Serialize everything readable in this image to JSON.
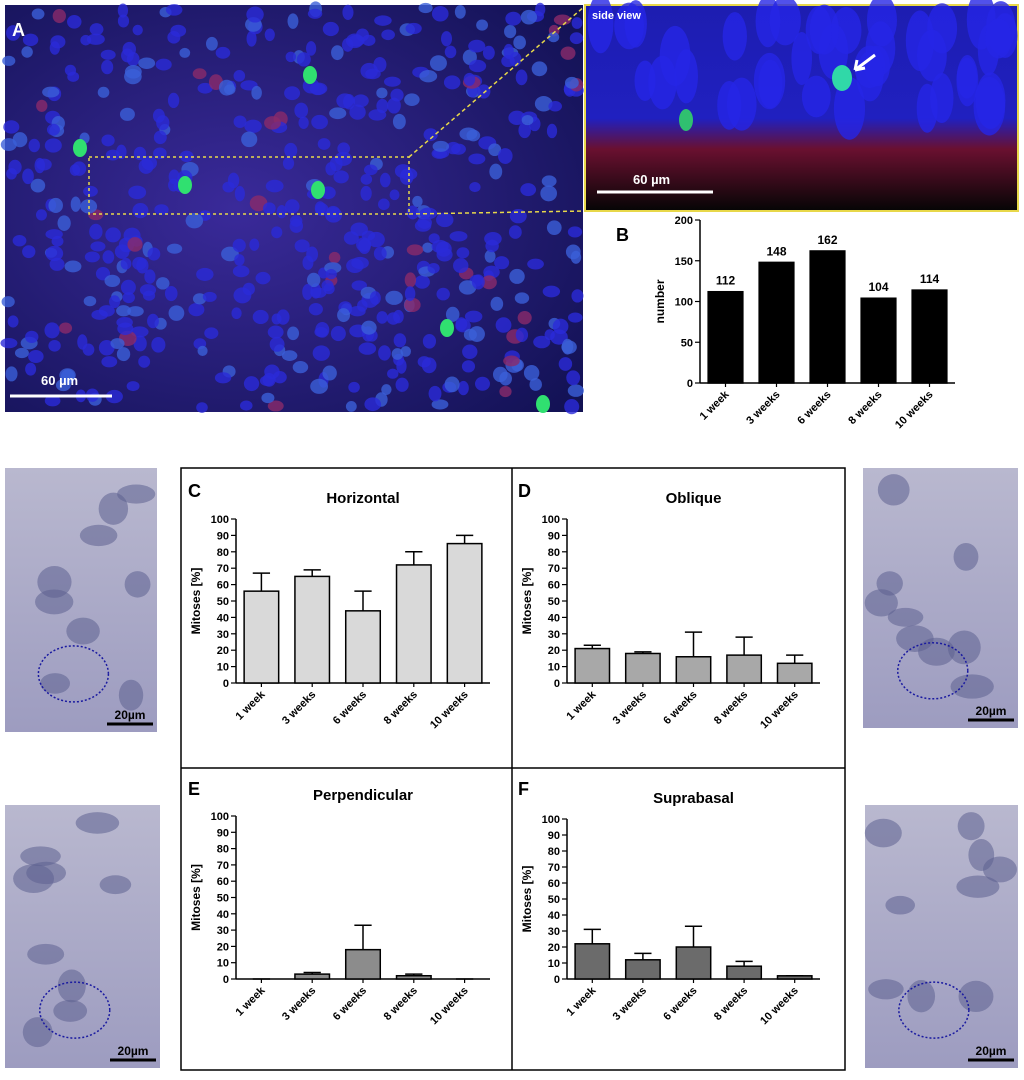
{
  "panel_labels": [
    "A",
    "B",
    "C",
    "D",
    "E",
    "F"
  ],
  "image_a": {
    "scale_bar": "60 µm"
  },
  "inset": {
    "title": "side view",
    "scale_bar": "60 µm"
  },
  "side_images": [
    "20µm",
    "20µm",
    "20µm",
    "20µm"
  ],
  "chart_data": [
    {
      "type": "bar",
      "y_label": "number",
      "categories": [
        "1 week",
        "3 weeks",
        "6 weeks",
        "8 weeks",
        "10 weeks"
      ],
      "values": [
        112,
        148,
        162,
        104,
        114
      ],
      "color": "#000000",
      "ylim": [
        0,
        200
      ],
      "yticks": [
        0,
        50,
        100,
        150,
        200
      ]
    },
    {
      "type": "bar",
      "title": "Horizontal",
      "y_label": "Mitoses [%]",
      "categories": [
        "1 week",
        "3 weeks",
        "6 weeks",
        "8 weeks",
        "10 weeks"
      ],
      "values": [
        56,
        65,
        44,
        72,
        85
      ],
      "errors": [
        11,
        4,
        12,
        8,
        5
      ],
      "color": "#d9d9d9",
      "ylim": [
        0,
        100
      ],
      "yticks": [
        0,
        10,
        20,
        30,
        40,
        50,
        60,
        70,
        80,
        90,
        100
      ]
    },
    {
      "type": "bar",
      "title": "Oblique",
      "y_label": "Mitoses [%]",
      "categories": [
        "1 week",
        "3 weeks",
        "6 weeks",
        "8 weeks",
        "10 weeks"
      ],
      "values": [
        21,
        18,
        16,
        17,
        12
      ],
      "errors": [
        2,
        1,
        15,
        11,
        5
      ],
      "color": "#a8a8a8",
      "ylim": [
        0,
        100
      ],
      "yticks": [
        0,
        10,
        20,
        30,
        40,
        50,
        60,
        70,
        80,
        90,
        100
      ]
    },
    {
      "type": "bar",
      "title": "Perpendicular",
      "y_label": "Mitoses [%]",
      "categories": [
        "1 week",
        "3 weeks",
        "6 weeks",
        "8 weeks",
        "10 weeks"
      ],
      "values": [
        0,
        3,
        18,
        2,
        0
      ],
      "errors": [
        0,
        1,
        15,
        1,
        0
      ],
      "color": "#8c8c8c",
      "ylim": [
        0,
        100
      ],
      "yticks": [
        0,
        10,
        20,
        30,
        40,
        50,
        60,
        70,
        80,
        90,
        100
      ]
    },
    {
      "type": "bar",
      "title": "Suprabasal",
      "y_label": "Mitoses [%]",
      "categories": [
        "1 week",
        "3 weeks",
        "6 weeks",
        "8 weeks",
        "10 weeks"
      ],
      "values": [
        22,
        12,
        20,
        8,
        2
      ],
      "errors": [
        9,
        4,
        13,
        3,
        0
      ],
      "color": "#6b6b6b",
      "ylim": [
        0,
        100
      ],
      "yticks": [
        0,
        10,
        20,
        30,
        40,
        50,
        60,
        70,
        80,
        90,
        100
      ]
    }
  ]
}
